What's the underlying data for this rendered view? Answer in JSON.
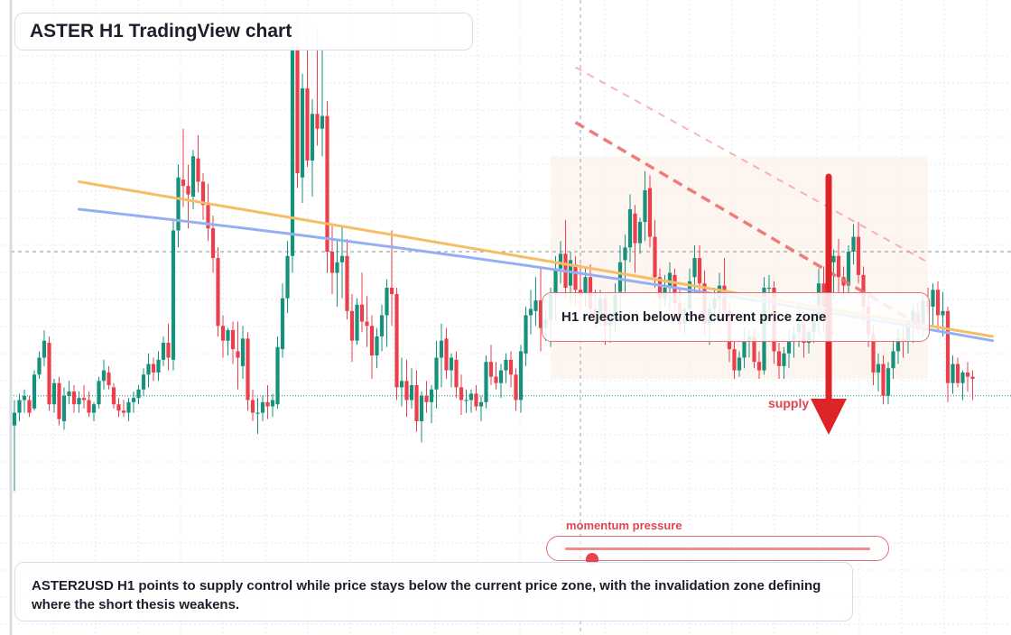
{
  "title": "ASTER H1 TradingView chart",
  "callout": "H1 rejection below the current price zone",
  "supply_label": "supply",
  "momentum": {
    "label": "momentum pressure",
    "level": 0.09
  },
  "summary": "ASTER2USD H1 points to supply control while price stays below the current price zone, with the invalidation zone defining where the short thesis weakens.",
  "colors": {
    "bull": "#15917c",
    "bear": "#ec3f4c",
    "trend_orange": "#f6bd67",
    "trend_blue": "#95b0f2",
    "resistance": "#ec7070",
    "arrow": "#dd2528",
    "zone": "#fcefe4"
  },
  "chart_data": {
    "type": "candlestick",
    "title": "",
    "grid": true,
    "candles": [
      [
        78,
        90,
        47,
        84
      ],
      [
        84,
        93,
        80,
        90
      ],
      [
        90,
        95,
        84,
        92
      ],
      [
        90,
        92,
        82,
        84
      ],
      [
        86,
        104,
        85,
        102
      ],
      [
        102,
        113,
        100,
        110
      ],
      [
        110,
        123,
        106,
        118
      ],
      [
        117,
        120,
        85,
        88
      ],
      [
        88,
        100,
        84,
        98
      ],
      [
        98,
        101,
        78,
        81
      ],
      [
        80,
        96,
        76,
        92
      ],
      [
        92,
        99,
        88,
        94
      ],
      [
        94,
        97,
        84,
        88
      ],
      [
        88,
        94,
        84,
        91
      ],
      [
        91,
        97,
        86,
        90
      ],
      [
        90,
        94,
        82,
        84
      ],
      [
        84,
        89,
        80,
        88
      ],
      [
        88,
        101,
        86,
        99
      ],
      [
        99,
        109,
        95,
        104
      ],
      [
        103,
        106,
        95,
        97
      ],
      [
        96,
        98,
        86,
        88
      ],
      [
        88,
        91,
        82,
        85
      ],
      [
        85,
        90,
        82,
        84
      ],
      [
        84,
        91,
        80,
        89
      ],
      [
        89,
        94,
        84,
        91
      ],
      [
        91,
        97,
        88,
        95
      ],
      [
        95,
        105,
        92,
        102
      ],
      [
        102,
        112,
        96,
        107
      ],
      [
        107,
        110,
        99,
        103
      ],
      [
        103,
        113,
        99,
        109
      ],
      [
        109,
        120,
        106,
        117
      ],
      [
        117,
        126,
        104,
        110
      ],
      [
        109,
        175,
        104,
        170
      ],
      [
        170,
        201,
        162,
        195
      ],
      [
        194,
        218,
        181,
        191
      ],
      [
        191,
        201,
        171,
        187
      ],
      [
        186,
        208,
        180,
        205
      ],
      [
        204,
        215,
        188,
        193
      ],
      [
        193,
        197,
        175,
        182
      ],
      [
        182,
        192,
        165,
        171
      ],
      [
        171,
        177,
        150,
        157
      ],
      [
        157,
        162,
        120,
        125
      ],
      [
        125,
        130,
        110,
        118
      ],
      [
        118,
        124,
        111,
        123
      ],
      [
        123,
        127,
        107,
        114
      ],
      [
        113,
        127,
        95,
        110
      ],
      [
        106,
        125,
        100,
        119
      ],
      [
        119,
        122,
        85,
        90
      ],
      [
        90,
        95,
        80,
        84
      ],
      [
        84,
        91,
        74,
        84
      ],
      [
        84,
        92,
        80,
        89
      ],
      [
        89,
        97,
        81,
        87
      ],
      [
        87,
        93,
        82,
        90
      ],
      [
        88,
        120,
        86,
        115
      ],
      [
        114,
        145,
        110,
        138
      ],
      [
        138,
        165,
        131,
        158
      ],
      [
        158,
        261,
        150,
        257
      ],
      [
        257,
        271,
        190,
        197
      ],
      [
        195,
        244,
        183,
        237
      ],
      [
        237,
        262,
        200,
        203
      ],
      [
        203,
        232,
        186,
        225
      ],
      [
        225,
        266,
        210,
        218
      ],
      [
        218,
        260,
        205,
        224
      ],
      [
        224,
        231,
        150,
        160
      ],
      [
        160,
        172,
        140,
        150
      ],
      [
        150,
        165,
        134,
        155
      ],
      [
        155,
        172,
        138,
        158
      ],
      [
        158,
        166,
        128,
        132
      ],
      [
        132,
        140,
        108,
        118
      ],
      [
        118,
        138,
        116,
        135
      ],
      [
        135,
        150,
        122,
        127
      ],
      [
        127,
        139,
        115,
        125
      ],
      [
        125,
        130,
        100,
        111
      ],
      [
        111,
        124,
        105,
        120
      ],
      [
        120,
        135,
        113,
        130
      ],
      [
        130,
        147,
        115,
        143
      ],
      [
        143,
        170,
        125,
        140
      ],
      [
        140,
        143,
        90,
        96
      ],
      [
        96,
        110,
        87,
        99
      ],
      [
        99,
        109,
        82,
        90
      ],
      [
        90,
        105,
        86,
        97
      ],
      [
        97,
        104,
        75,
        80
      ],
      [
        80,
        94,
        70,
        92
      ],
      [
        92,
        99,
        84,
        89
      ],
      [
        89,
        97,
        79,
        95
      ],
      [
        95,
        118,
        86,
        110
      ],
      [
        110,
        126,
        96,
        118
      ],
      [
        119,
        124,
        100,
        104
      ],
      [
        104,
        112,
        96,
        110
      ],
      [
        109,
        113,
        91,
        96
      ],
      [
        96,
        102,
        83,
        90
      ],
      [
        90,
        95,
        84,
        90
      ],
      [
        90,
        95,
        84,
        93
      ],
      [
        93,
        97,
        85,
        87
      ],
      [
        87,
        92,
        80,
        89
      ],
      [
        89,
        111,
        86,
        108
      ],
      [
        108,
        116,
        97,
        101
      ],
      [
        101,
        108,
        95,
        98
      ],
      [
        98,
        107,
        91,
        104
      ],
      [
        104,
        112,
        98,
        109
      ],
      [
        109,
        113,
        96,
        102
      ],
      [
        102,
        105,
        85,
        90
      ],
      [
        90,
        116,
        84,
        113
      ],
      [
        112,
        134,
        106,
        130
      ],
      [
        130,
        142,
        121,
        133
      ],
      [
        132,
        148,
        125,
        137
      ],
      [
        137,
        152,
        113,
        124
      ],
      [
        124,
        132,
        118,
        128
      ],
      [
        128,
        143,
        115,
        140
      ],
      [
        140,
        158,
        128,
        152
      ],
      [
        152,
        165,
        145,
        159
      ],
      [
        159,
        175,
        138,
        143
      ],
      [
        144,
        160,
        135,
        156
      ],
      [
        154,
        158,
        135,
        142
      ],
      [
        142,
        154,
        132,
        140
      ],
      [
        140,
        152,
        134,
        148
      ],
      [
        148,
        154,
        128,
        133
      ],
      [
        133,
        142,
        124,
        130
      ],
      [
        130,
        142,
        125,
        138
      ],
      [
        138,
        140,
        116,
        125
      ],
      [
        125,
        133,
        117,
        130
      ],
      [
        130,
        145,
        122,
        140
      ],
      [
        141,
        163,
        130,
        155
      ],
      [
        156,
        168,
        141,
        162
      ],
      [
        162,
        187,
        155,
        180
      ],
      [
        178,
        182,
        150,
        164
      ],
      [
        164,
        176,
        159,
        174
      ],
      [
        174,
        198,
        165,
        189
      ],
      [
        190,
        196,
        162,
        167
      ],
      [
        167,
        175,
        143,
        148
      ],
      [
        148,
        152,
        132,
        138
      ],
      [
        138,
        149,
        134,
        143
      ],
      [
        143,
        155,
        132,
        150
      ],
      [
        149,
        152,
        130,
        136
      ],
      [
        136,
        142,
        122,
        126
      ],
      [
        126,
        136,
        121,
        133
      ],
      [
        133,
        152,
        129,
        146
      ],
      [
        148,
        163,
        140,
        157
      ],
      [
        157,
        163,
        140,
        145
      ],
      [
        145,
        151,
        120,
        126
      ],
      [
        126,
        136,
        116,
        133
      ],
      [
        133,
        143,
        126,
        138
      ],
      [
        138,
        150,
        130,
        144
      ],
      [
        144,
        157,
        129,
        132
      ],
      [
        132,
        136,
        108,
        114
      ],
      [
        114,
        118,
        100,
        104
      ],
      [
        104,
        113,
        101,
        110
      ],
      [
        110,
        124,
        105,
        118
      ],
      [
        118,
        123,
        110,
        120
      ],
      [
        120,
        124,
        105,
        108
      ],
      [
        108,
        113,
        100,
        104
      ],
      [
        104,
        148,
        102,
        143
      ],
      [
        143,
        149,
        132,
        143
      ],
      [
        143,
        146,
        107,
        113
      ],
      [
        113,
        117,
        100,
        106
      ],
      [
        106,
        115,
        100,
        112
      ],
      [
        112,
        123,
        105,
        118
      ],
      [
        118,
        125,
        110,
        121
      ],
      [
        122,
        136,
        115,
        126
      ],
      [
        126,
        132,
        110,
        117
      ],
      [
        117,
        124,
        112,
        122
      ],
      [
        122,
        135,
        117,
        129
      ],
      [
        129,
        152,
        121,
        145
      ],
      [
        145,
        153,
        122,
        129
      ],
      [
        129,
        159,
        126,
        155
      ],
      [
        155,
        161,
        138,
        158
      ],
      [
        158,
        166,
        140,
        148
      ],
      [
        148,
        153,
        138,
        144
      ],
      [
        144,
        163,
        140,
        160
      ],
      [
        160,
        173,
        154,
        167
      ],
      [
        167,
        174,
        145,
        149
      ],
      [
        149,
        153,
        126,
        134
      ],
      [
        134,
        141,
        115,
        121
      ],
      [
        121,
        125,
        97,
        103
      ],
      [
        103,
        112,
        94,
        107
      ],
      [
        107,
        111,
        88,
        92
      ],
      [
        92,
        108,
        88,
        105
      ],
      [
        105,
        118,
        100,
        113
      ],
      [
        113,
        124,
        107,
        119
      ],
      [
        119,
        125,
        110,
        118
      ],
      [
        118,
        128,
        112,
        126
      ],
      [
        126,
        135,
        117,
        132
      ],
      [
        131,
        136,
        121,
        126
      ],
      [
        126,
        140,
        120,
        137
      ],
      [
        137,
        143,
        130,
        134
      ],
      [
        134,
        145,
        125,
        142
      ],
      [
        142,
        146,
        123,
        130
      ],
      [
        130,
        141,
        120,
        132
      ],
      [
        132,
        134,
        89,
        98
      ],
      [
        98,
        111,
        93,
        107
      ],
      [
        107,
        110,
        96,
        98
      ],
      [
        98,
        104,
        90,
        103
      ],
      [
        103,
        108,
        94,
        101
      ],
      [
        101,
        104,
        90,
        100
      ]
    ],
    "trendlines": [
      {
        "from": [
          13,
          193
        ],
        "to": [
          197,
          120
        ]
      },
      {
        "from": [
          13,
          180
        ],
        "to": [
          197,
          118
        ]
      }
    ],
    "resistance_lines": [
      {
        "from": [
          113,
          221
        ],
        "to": [
          184,
          123
        ]
      },
      {
        "from": [
          113,
          247
        ],
        "to": [
          184,
          155
        ]
      }
    ],
    "reference_level_y": 160,
    "current_price_level_y": 92,
    "supply_zone": {
      "from_x": 108,
      "to_x": 184,
      "y_low": 100,
      "y_high": 205
    }
  }
}
